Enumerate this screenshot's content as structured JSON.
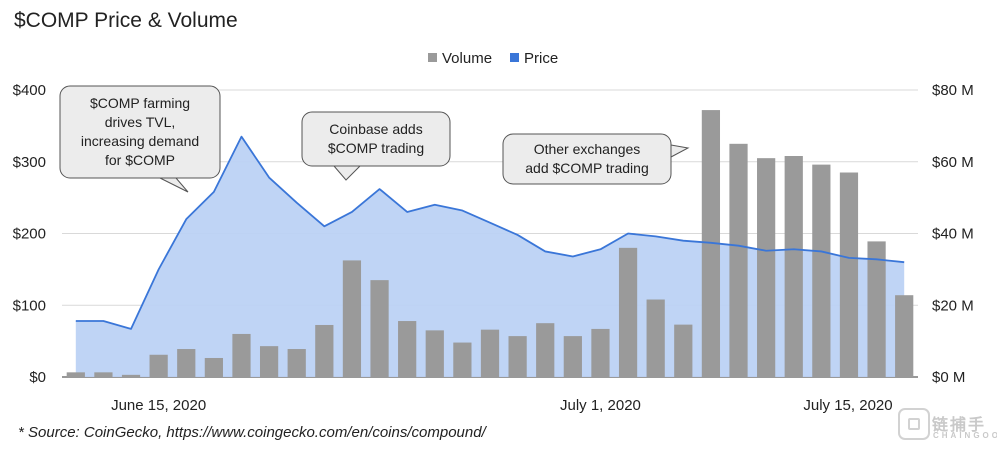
{
  "chart_data": {
    "type": "bar",
    "title": "$COMP Price & Volume",
    "x_tick_labels": [
      "June 15, 2020",
      "July 1, 2020",
      "July 15, 2020"
    ],
    "y_left_ticks": [
      "$0",
      "$100",
      "$200",
      "$300",
      "$400"
    ],
    "y_right_ticks": [
      "$0 M",
      "$20 M",
      "$40 M",
      "$60 M",
      "$80 M"
    ],
    "y_left_lim": [
      0,
      400
    ],
    "y_right_lim": [
      0,
      80
    ],
    "grid": true,
    "legend_position": "top-center",
    "series": [
      {
        "name": "Volume",
        "type": "bar",
        "axis": "right",
        "color": "#9a9a9a",
        "values": [
          1.3,
          1.3,
          0.6,
          6.2,
          7.8,
          5.3,
          12,
          8.6,
          7.8,
          14.5,
          32.5,
          27,
          15.6,
          13,
          9.6,
          13.2,
          11.4,
          15,
          11.4,
          13.4,
          36,
          21.6,
          14.6,
          74.4,
          65,
          61,
          61.6,
          59.2,
          57,
          37.8,
          22.8
        ]
      },
      {
        "name": "Price",
        "type": "area",
        "axis": "left",
        "color": "#3a76d8",
        "values": [
          78,
          78,
          67,
          150,
          220,
          258,
          335,
          278,
          243,
          210,
          230,
          262,
          230,
          240,
          232,
          215,
          198,
          175,
          168,
          178,
          200,
          196,
          190,
          187,
          183,
          176,
          178,
          175,
          166,
          164,
          160
        ]
      }
    ],
    "annotations": [
      "$COMP farming\ndrives TVL,\nincreasing demand\nfor $COMP",
      "Coinbase adds\n$COMP trading",
      "Other exchanges\nadd $COMP trading"
    ]
  },
  "source_note": "* Source: CoinGecko, https://www.coingecko.com/en/coins/compound/",
  "watermark": {
    "cn": "链捕手",
    "en": "CHAINGOO"
  }
}
